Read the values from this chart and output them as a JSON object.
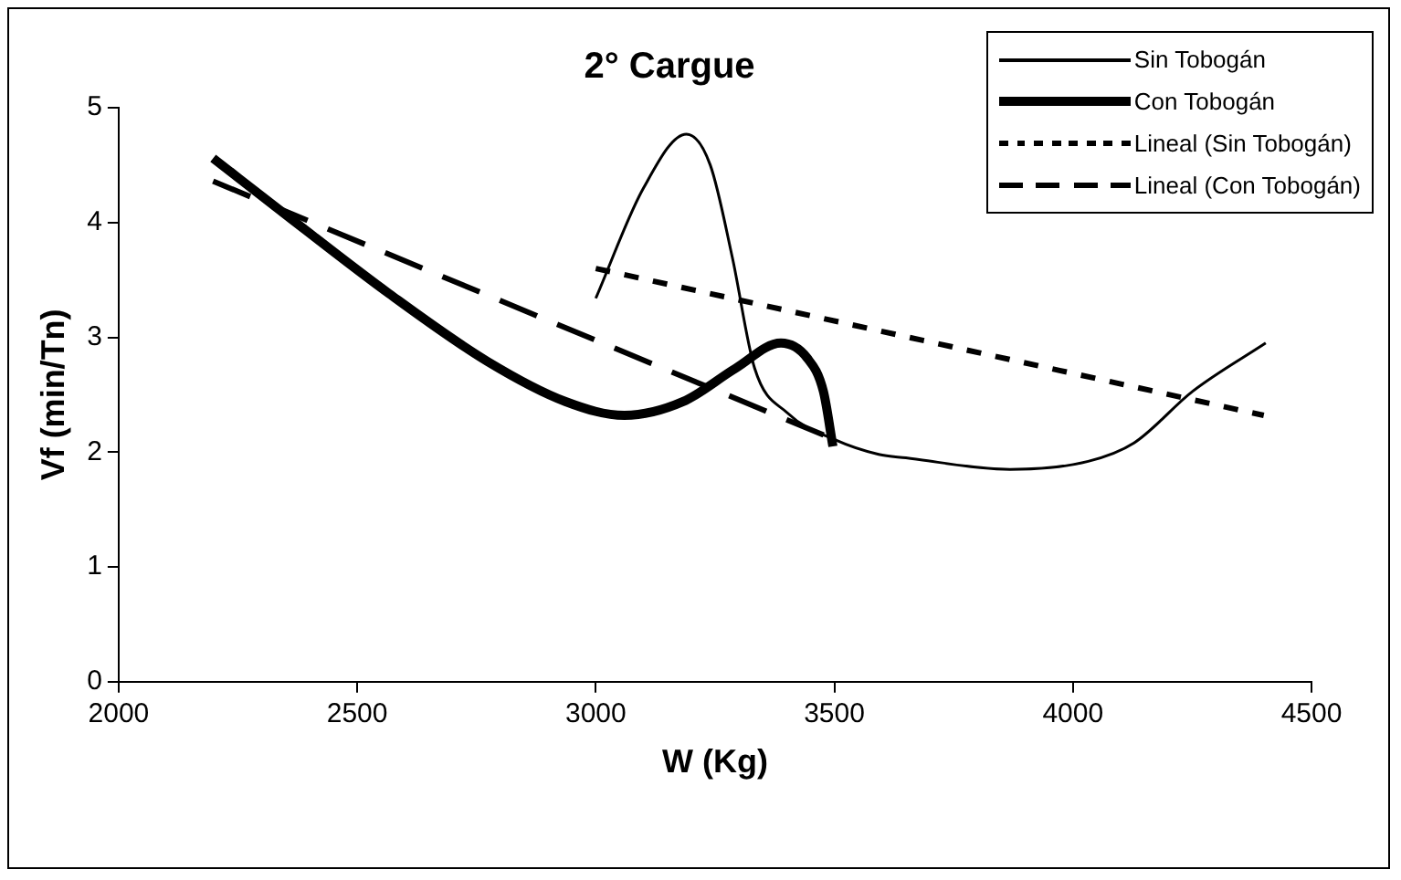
{
  "chart_data": {
    "type": "line",
    "title": "2° Cargue",
    "xlabel": "W (Kg)",
    "ylabel": "Vf (min/Tn)",
    "xlim": [
      2000,
      4500
    ],
    "xticks": [
      2000,
      2500,
      3000,
      3500,
      4000,
      4500
    ],
    "ylim": [
      0,
      5
    ],
    "yticks": [
      0,
      1,
      2,
      3,
      4,
      5
    ],
    "grid": false,
    "legend": "top right",
    "marker": "none",
    "series": [
      {
        "name": "Sin Tobogán",
        "color": "#000000",
        "line_style": "solid",
        "x": [
          3000,
          3100,
          3190,
          3240,
          3286,
          3333,
          3402,
          3500,
          3593,
          3650,
          3868,
          4032,
          4128,
          4251,
          4404
        ],
        "values": [
          3.34,
          4.3,
          4.77,
          4.5,
          3.7,
          2.73,
          2.34,
          2.11,
          1.98,
          1.95,
          1.85,
          1.92,
          2.08,
          2.53,
          2.95
        ]
      },
      {
        "name": "Con Tobogán",
        "color": "#000000",
        "line_style": "solid",
        "x": [
          2198,
          2362,
          2567,
          2773,
          2937,
          3060,
          3183,
          3293,
          3388,
          3443,
          3477,
          3497
        ],
        "values": [
          4.56,
          4.03,
          3.38,
          2.79,
          2.44,
          2.32,
          2.44,
          2.73,
          2.95,
          2.82,
          2.53,
          2.05
        ]
      },
      {
        "name": "Lineal (Sin Tobogán)",
        "color": "#000000",
        "line_style": "dotted",
        "x": [
          3000,
          4400
        ],
        "values": [
          3.6,
          2.32
        ]
      },
      {
        "name": "Lineal (Con Tobogán)",
        "color": "#000000",
        "line_style": "dashed",
        "x": [
          2198,
          3500
        ],
        "values": [
          4.36,
          2.11
        ]
      }
    ]
  }
}
